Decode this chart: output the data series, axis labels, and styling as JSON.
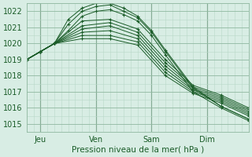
{
  "xlabel": "Pression niveau de la mer( hPa )",
  "bg_color": "#d8ede4",
  "plot_bg_color": "#d8ede4",
  "grid_color_minor": "#b8d8c8",
  "grid_color_major": "#90b8a0",
  "line_color": "#1a5c28",
  "ylim": [
    1014.5,
    1022.5
  ],
  "yticks": [
    1015,
    1016,
    1017,
    1018,
    1019,
    1020,
    1021,
    1022
  ],
  "day_ticks": [
    0,
    24,
    48,
    72
  ],
  "day_labels": [
    "Jeu",
    "Ven",
    "Sam",
    "Dim"
  ],
  "xlim": [
    -6,
    90
  ],
  "series": [
    {
      "x": [
        -6,
        0,
        6,
        18,
        30,
        42,
        54,
        66,
        78,
        90
      ],
      "y": [
        1019.0,
        1019.5,
        1020.0,
        1020.3,
        1020.3,
        1019.9,
        1018.0,
        1016.9,
        1016.3,
        1015.5
      ]
    },
    {
      "x": [
        -6,
        0,
        6,
        18,
        30,
        42,
        54,
        66,
        78,
        90
      ],
      "y": [
        1019.0,
        1019.5,
        1020.0,
        1020.5,
        1020.5,
        1020.1,
        1018.2,
        1017.0,
        1016.4,
        1015.6
      ]
    },
    {
      "x": [
        -6,
        0,
        6,
        18,
        30,
        42,
        54,
        66,
        78,
        90
      ],
      "y": [
        1019.0,
        1019.5,
        1020.0,
        1020.7,
        1020.8,
        1020.3,
        1018.4,
        1017.1,
        1016.5,
        1015.7
      ]
    },
    {
      "x": [
        -6,
        0,
        6,
        18,
        30,
        42,
        54,
        66,
        78,
        90
      ],
      "y": [
        1019.0,
        1019.5,
        1020.0,
        1020.9,
        1021.1,
        1020.5,
        1018.6,
        1017.2,
        1016.6,
        1015.8
      ]
    },
    {
      "x": [
        -6,
        0,
        6,
        18,
        30,
        42,
        54,
        66,
        78,
        90
      ],
      "y": [
        1019.0,
        1019.5,
        1020.0,
        1021.1,
        1021.3,
        1020.7,
        1018.8,
        1017.3,
        1016.7,
        1015.9
      ]
    },
    {
      "x": [
        -6,
        0,
        6,
        18,
        30,
        42,
        54,
        66,
        78,
        90
      ],
      "y": [
        1019.0,
        1019.5,
        1020.0,
        1021.4,
        1021.5,
        1020.9,
        1019.0,
        1017.4,
        1016.8,
        1016.0
      ]
    },
    {
      "x": [
        -6,
        0,
        6,
        12,
        18,
        24,
        30,
        36,
        42,
        48,
        54,
        66,
        78,
        90
      ],
      "y": [
        1019.0,
        1019.5,
        1020.0,
        1020.8,
        1021.7,
        1022.0,
        1022.1,
        1021.8,
        1021.4,
        1020.5,
        1019.3,
        1017.0,
        1016.0,
        1015.2
      ]
    },
    {
      "x": [
        -6,
        0,
        6,
        12,
        18,
        24,
        30,
        36,
        42,
        48,
        54,
        66,
        78,
        90
      ],
      "y": [
        1019.0,
        1019.5,
        1020.0,
        1021.2,
        1022.0,
        1022.3,
        1022.4,
        1022.0,
        1021.6,
        1020.7,
        1019.5,
        1017.2,
        1016.1,
        1015.3
      ]
    },
    {
      "x": [
        -6,
        0,
        6,
        12,
        18,
        24,
        30,
        36,
        42,
        48,
        54,
        66,
        78,
        90
      ],
      "y": [
        1019.0,
        1019.5,
        1020.0,
        1021.5,
        1022.2,
        1022.5,
        1022.5,
        1022.2,
        1021.7,
        1020.8,
        1019.6,
        1017.3,
        1016.1,
        1015.3
      ]
    }
  ]
}
